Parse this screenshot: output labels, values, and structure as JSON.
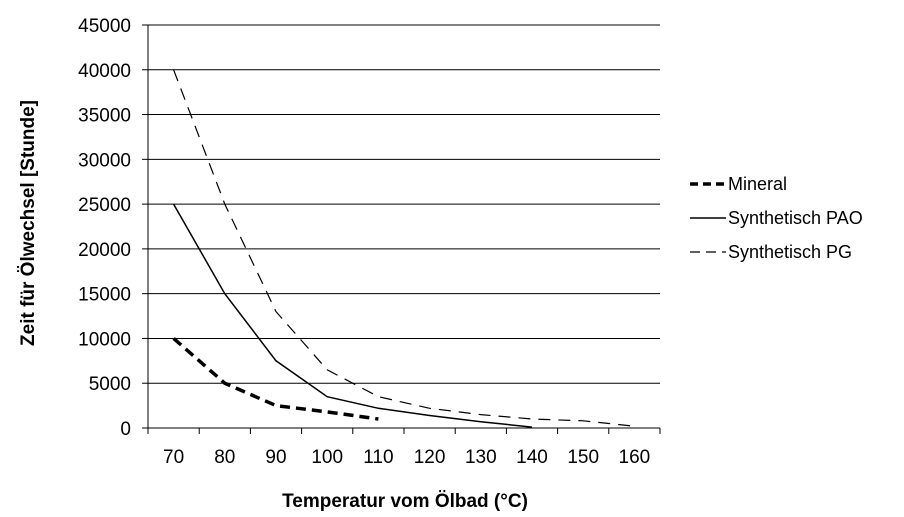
{
  "chart_data": {
    "type": "line",
    "xlabel": "Temperatur vom Ölbad (°C)",
    "ylabel": "Zeit für Ölwechsel [Stunde]",
    "x_categories": [
      "70",
      "80",
      "90",
      "100",
      "110",
      "120",
      "130",
      "140",
      "150",
      "160"
    ],
    "ylim": [
      0,
      45000
    ],
    "y_ticks": [
      0,
      5000,
      10000,
      15000,
      20000,
      25000,
      30000,
      35000,
      40000,
      45000
    ],
    "grid": "horizontal",
    "legend_position": "right",
    "series": [
      {
        "name": "Mineral",
        "style": "bold-dashed",
        "color": "#000000",
        "points": [
          [
            70,
            10000
          ],
          [
            80,
            5000
          ],
          [
            90,
            2500
          ],
          [
            100,
            1800
          ],
          [
            110,
            1000
          ]
        ]
      },
      {
        "name": "Synthetisch PAO",
        "style": "solid",
        "color": "#000000",
        "points": [
          [
            70,
            25000
          ],
          [
            80,
            15000
          ],
          [
            90,
            7500
          ],
          [
            100,
            3500
          ],
          [
            110,
            2200
          ],
          [
            120,
            1400
          ],
          [
            130,
            700
          ],
          [
            140,
            100
          ]
        ]
      },
      {
        "name": "Synthetisch PG",
        "style": "dashed",
        "color": "#000000",
        "points": [
          [
            70,
            40000
          ],
          [
            80,
            25000
          ],
          [
            90,
            13000
          ],
          [
            100,
            6500
          ],
          [
            110,
            3500
          ],
          [
            120,
            2200
          ],
          [
            130,
            1500
          ],
          [
            140,
            1000
          ],
          [
            150,
            800
          ],
          [
            160,
            200
          ]
        ]
      }
    ]
  }
}
